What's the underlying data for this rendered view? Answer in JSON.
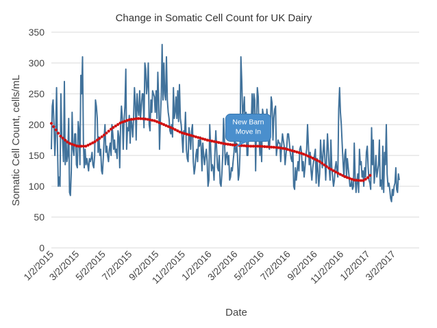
{
  "chart_data": {
    "type": "line",
    "title": "Change in Somatic Cell Count for UK Dairy",
    "xlabel": "Date",
    "ylabel": "Somatic Cell Count, cells/mL",
    "ylim": [
      0,
      350
    ],
    "yticks": [
      0,
      50,
      100,
      150,
      200,
      250,
      300,
      350
    ],
    "xlim": [
      "2015-01-02",
      "2017-05-01"
    ],
    "xticks": [
      {
        "date": "2015-01-02",
        "label": "1/2/2015"
      },
      {
        "date": "2015-03-02",
        "label": "3/2/2015"
      },
      {
        "date": "2015-05-02",
        "label": "5/2/2015"
      },
      {
        "date": "2015-07-02",
        "label": "7/2/2015"
      },
      {
        "date": "2015-09-02",
        "label": "9/2/2015"
      },
      {
        "date": "2015-11-02",
        "label": "11/2/2015"
      },
      {
        "date": "2016-01-02",
        "label": "1/2/2016"
      },
      {
        "date": "2016-03-02",
        "label": "3/2/2016"
      },
      {
        "date": "2016-05-02",
        "label": "5/2/2016"
      },
      {
        "date": "2016-07-02",
        "label": "7/2/2016"
      },
      {
        "date": "2016-09-02",
        "label": "9/2/2016"
      },
      {
        "date": "2016-11-02",
        "label": "11/2/2016"
      },
      {
        "date": "2017-01-02",
        "label": "1/2/2017"
      },
      {
        "date": "2017-03-02",
        "label": "3/2/2017"
      }
    ],
    "grid": {
      "horizontal": true,
      "vertical": false
    },
    "colors": {
      "series": "#41729b",
      "trend": "#d01010",
      "grid": "#d9d9d9",
      "callout": "#4a8fcd"
    },
    "series": [
      {
        "start_date": "2015-01-02",
        "step_days": 2,
        "values": [
          160,
          230,
          240,
          200,
          150,
          185,
          260,
          175,
          100,
          115,
          100,
          250,
          180,
          175,
          140,
          270,
          135,
          175,
          140,
          150,
          210,
          90,
          85,
          125,
          220,
          160,
          150,
          185,
          185,
          135,
          130,
          205,
          190,
          135,
          280,
          250,
          310,
          170,
          130,
          160,
          135,
          145,
          135,
          125,
          145,
          140,
          145,
          155,
          135,
          130,
          150,
          240,
          230,
          210,
          155,
          180,
          150,
          160,
          125,
          120,
          145,
          180,
          200,
          155,
          165,
          150,
          140,
          160,
          170,
          150,
          200,
          185,
          160,
          175,
          155,
          160,
          145,
          190,
          180,
          130,
          200,
          230,
          210,
          160,
          205,
          230,
          290,
          160,
          195,
          190,
          215,
          170,
          210,
          200,
          180,
          210,
          260,
          235,
          175,
          250,
          225,
          215,
          255,
          210,
          230,
          250,
          250,
          195,
          300,
          290,
          250,
          265,
          300,
          200,
          190,
          240,
          220,
          255,
          250,
          245,
          220,
          255,
          210,
          285,
          240,
          160,
          210,
          250,
          330,
          240,
          300,
          250,
          240,
          310,
          240,
          220,
          210,
          190,
          185,
          200,
          180,
          260,
          210,
          220,
          245,
          210,
          255,
          205,
          265,
          210,
          200,
          180,
          155,
          190,
          185,
          220,
          160,
          145,
          140,
          195,
          180,
          160,
          190,
          200,
          140,
          120,
          130,
          150,
          160,
          140,
          175,
          165,
          180,
          165,
          125,
          170,
          150,
          135,
          150,
          160,
          140,
          100,
          110,
          200,
          165,
          125,
          135,
          130,
          110,
          155,
          190,
          160,
          130,
          125,
          150,
          105,
          100,
          120,
          150,
          210,
          175,
          135,
          150,
          155,
          135,
          150,
          110,
          115,
          130,
          125,
          140,
          155,
          185,
          155,
          170,
          150,
          110,
          120,
          155,
          310,
          270,
          215,
          225,
          245,
          180,
          220,
          150,
          150,
          195,
          180,
          185,
          205,
          250,
          210,
          250,
          240,
          125,
          210,
          260,
          245,
          180,
          150,
          190,
          140,
          225,
          215,
          190,
          205,
          175,
          225,
          205,
          165,
          160,
          195,
          245,
          235,
          175,
          210,
          225,
          230,
          150,
          165,
          175,
          170,
          170,
          140,
          165,
          185,
          175,
          165,
          135,
          150,
          165,
          185,
          185,
          170,
          155,
          145,
          140,
          165,
          100,
          95,
          130,
          110,
          125,
          140,
          125,
          160,
          165,
          155,
          125,
          140,
          115,
          130,
          150,
          160,
          200,
          165,
          135,
          155,
          125,
          110,
          130,
          140,
          150,
          160,
          105,
          145,
          125,
          100,
          120,
          175,
          150,
          130,
          155,
          175,
          145,
          110,
          145,
          185,
          160,
          130,
          110,
          175,
          130,
          115,
          100,
          110,
          130,
          140,
          125,
          115,
          225,
          260,
          220,
          200,
          170,
          140,
          115,
          150,
          160,
          115,
          145,
          130,
          115,
          100,
          100,
          110,
          95,
          100,
          170,
          115,
          90,
          105,
          120,
          90,
          160,
          135,
          140,
          115,
          125,
          100,
          130,
          115,
          155,
          165,
          130,
          110,
          105,
          95,
          195,
          135,
          175,
          105,
          125,
          150,
          115,
          125,
          135,
          175,
          100,
          110,
          95,
          165,
          90,
          155,
          135,
          200,
          120,
          100,
          105,
          95,
          80,
          75,
          95,
          85,
          100,
          105,
          130,
          95,
          90,
          120,
          110
        ]
      }
    ],
    "trendline": {
      "type": "polynomial",
      "style": "dotted",
      "points": [
        [
          0,
          202
        ],
        [
          20,
          182
        ],
        [
          40,
          170
        ],
        [
          60,
          165
        ],
        [
          80,
          165
        ],
        [
          100,
          172
        ],
        [
          120,
          182
        ],
        [
          140,
          194
        ],
        [
          160,
          203
        ],
        [
          180,
          208
        ],
        [
          200,
          210
        ],
        [
          220,
          209
        ],
        [
          240,
          206
        ],
        [
          260,
          200
        ],
        [
          280,
          194
        ],
        [
          300,
          187
        ],
        [
          320,
          183
        ],
        [
          340,
          179
        ],
        [
          360,
          175
        ],
        [
          380,
          172
        ],
        [
          400,
          169
        ],
        [
          420,
          167
        ],
        [
          440,
          166
        ],
        [
          460,
          165
        ],
        [
          480,
          165
        ],
        [
          500,
          164
        ],
        [
          520,
          163
        ],
        [
          540,
          161
        ],
        [
          560,
          157
        ],
        [
          580,
          153
        ],
        [
          600,
          147
        ],
        [
          620,
          140
        ],
        [
          640,
          130
        ],
        [
          660,
          122
        ],
        [
          680,
          115
        ],
        [
          700,
          110
        ],
        [
          720,
          109
        ],
        [
          730,
          113
        ],
        [
          740,
          120
        ]
      ]
    },
    "annotations": [
      {
        "text": [
          "New Barn",
          "Move In"
        ],
        "date": "2016-04-01",
        "value": 175
      }
    ]
  }
}
